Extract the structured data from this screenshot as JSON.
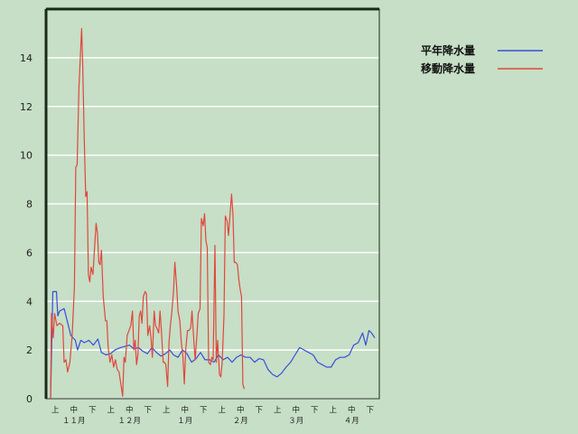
{
  "chart_data": {
    "type": "line",
    "ylim": [
      0,
      16
    ],
    "yticks": [
      0,
      2,
      4,
      6,
      8,
      10,
      12,
      14
    ],
    "grid": true,
    "legend_position": "top-right",
    "xticks_row1": [
      "上",
      "中",
      "下",
      "上",
      "中",
      "下",
      "上",
      "中",
      "下",
      "上",
      "中",
      "下",
      "上",
      "中",
      "下",
      "上",
      "中",
      "下"
    ],
    "xticks_row2": [
      "１１月",
      "１２月",
      "１月",
      "２月",
      "３月",
      "４月"
    ],
    "colors": {
      "normal": "#3a4ed8",
      "moving": "#e0473c",
      "background": "#c6dfc6"
    },
    "series": [
      {
        "name": "平年降水量",
        "color": "#3a4ed8",
        "points": [
          [
            0,
            0
          ],
          [
            0.5,
            4.4
          ],
          [
            1.3,
            4.4
          ],
          [
            1.6,
            3.4
          ],
          [
            2,
            3.6
          ],
          [
            3,
            3.7
          ],
          [
            3.7,
            3.2
          ],
          [
            4.5,
            2.6
          ],
          [
            5.5,
            2.4
          ],
          [
            6,
            2.0
          ],
          [
            6.7,
            2.4
          ],
          [
            7.5,
            2.3
          ],
          [
            8.5,
            2.4
          ],
          [
            9.5,
            2.2
          ],
          [
            10.5,
            2.45
          ],
          [
            11.3,
            1.9
          ],
          [
            12.3,
            1.8
          ],
          [
            13.3,
            1.85
          ],
          [
            14.3,
            2.0
          ],
          [
            15.5,
            2.1
          ],
          [
            17.5,
            2.2
          ],
          [
            18.5,
            2.05
          ],
          [
            19.5,
            2.1
          ],
          [
            20.5,
            1.95
          ],
          [
            21.5,
            1.85
          ],
          [
            22.5,
            2.1
          ],
          [
            23.5,
            1.9
          ],
          [
            24.5,
            1.75
          ],
          [
            25.5,
            1.85
          ],
          [
            26.5,
            2.0
          ],
          [
            27.3,
            1.8
          ],
          [
            28.3,
            1.7
          ],
          [
            29.3,
            2.0
          ],
          [
            30.3,
            1.85
          ],
          [
            31.3,
            1.5
          ],
          [
            32.3,
            1.65
          ],
          [
            33.3,
            1.9
          ],
          [
            34.3,
            1.6
          ],
          [
            35.3,
            1.6
          ],
          [
            36.3,
            1.5
          ],
          [
            37.3,
            1.8
          ],
          [
            38.3,
            1.6
          ],
          [
            39.3,
            1.7
          ],
          [
            40.3,
            1.5
          ],
          [
            41.3,
            1.7
          ],
          [
            42.3,
            1.8
          ],
          [
            43.3,
            1.7
          ],
          [
            44.3,
            1.7
          ],
          [
            45.3,
            1.5
          ],
          [
            46.3,
            1.65
          ],
          [
            47.3,
            1.6
          ],
          [
            48.3,
            1.2
          ],
          [
            49.3,
            1.0
          ],
          [
            50.3,
            0.9
          ],
          [
            51.3,
            1.05
          ],
          [
            52.3,
            1.3
          ],
          [
            53.3,
            1.5
          ],
          [
            54.3,
            1.8
          ],
          [
            55.3,
            2.1
          ],
          [
            56.3,
            2.0
          ],
          [
            57.3,
            1.9
          ],
          [
            58.3,
            1.8
          ],
          [
            59.3,
            1.5
          ],
          [
            60.3,
            1.4
          ],
          [
            61.3,
            1.3
          ],
          [
            62.3,
            1.3
          ],
          [
            63.3,
            1.6
          ],
          [
            64.3,
            1.7
          ],
          [
            65.3,
            1.7
          ],
          [
            66.3,
            1.8
          ],
          [
            67.3,
            2.2
          ],
          [
            68.3,
            2.3
          ],
          [
            69.3,
            2.7
          ],
          [
            70,
            2.2
          ],
          [
            70.7,
            2.8
          ],
          [
            71.3,
            2.7
          ],
          [
            72,
            2.5
          ]
        ]
      },
      {
        "name": "移動降水量",
        "color": "#e0473c",
        "points": [
          [
            0,
            0
          ],
          [
            0.2,
            3.5
          ],
          [
            0.6,
            2.5
          ],
          [
            0.9,
            3.5
          ],
          [
            1.4,
            3.0
          ],
          [
            2,
            3.1
          ],
          [
            2.7,
            3.0
          ],
          [
            3,
            1.5
          ],
          [
            3.4,
            1.6
          ],
          [
            3.8,
            1.1
          ],
          [
            4.3,
            1.5
          ],
          [
            4.8,
            2.6
          ],
          [
            5.3,
            4.6
          ],
          [
            5.6,
            9.5
          ],
          [
            5.9,
            9.6
          ],
          [
            6.3,
            12.8
          ],
          [
            6.9,
            15.2
          ],
          [
            7.1,
            14.0
          ],
          [
            7.5,
            10.5
          ],
          [
            7.8,
            8.3
          ],
          [
            8.1,
            8.5
          ],
          [
            8.4,
            5.1
          ],
          [
            8.7,
            4.8
          ],
          [
            9,
            5.4
          ],
          [
            9.4,
            5.1
          ],
          [
            9.8,
            6.3
          ],
          [
            10.1,
            7.2
          ],
          [
            10.4,
            6.8
          ],
          [
            10.7,
            5.6
          ],
          [
            11,
            5.5
          ],
          [
            11.3,
            6.1
          ],
          [
            11.7,
            4.2
          ],
          [
            12.2,
            3.2
          ],
          [
            12.5,
            3.2
          ],
          [
            12.8,
            2.1
          ],
          [
            13.2,
            1.5
          ],
          [
            13.6,
            1.8
          ],
          [
            14,
            1.3
          ],
          [
            14.4,
            1.6
          ],
          [
            14.8,
            1.2
          ],
          [
            15.2,
            1.1
          ],
          [
            15.6,
            0.6
          ],
          [
            16,
            0.1
          ],
          [
            16.3,
            1.7
          ],
          [
            16.6,
            1.5
          ],
          [
            17,
            2.6
          ],
          [
            17.4,
            2.8
          ],
          [
            17.8,
            3.0
          ],
          [
            18.2,
            3.6
          ],
          [
            18.5,
            2.0
          ],
          [
            18.8,
            2.4
          ],
          [
            19.1,
            1.4
          ],
          [
            19.4,
            1.8
          ],
          [
            19.7,
            3.4
          ],
          [
            20,
            3.6
          ],
          [
            20.3,
            3.1
          ],
          [
            20.6,
            4.2
          ],
          [
            21,
            4.4
          ],
          [
            21.3,
            4.3
          ],
          [
            21.6,
            2.6
          ],
          [
            22,
            3.0
          ],
          [
            22.3,
            2.5
          ],
          [
            22.6,
            1.7
          ],
          [
            23,
            3.6
          ],
          [
            23.3,
            3.0
          ],
          [
            23.6,
            2.9
          ],
          [
            24,
            2.7
          ],
          [
            24.3,
            3.6
          ],
          [
            24.6,
            2.8
          ],
          [
            25,
            1.5
          ],
          [
            25.3,
            1.5
          ],
          [
            25.6,
            1.4
          ],
          [
            26,
            0.5
          ],
          [
            26.3,
            2.3
          ],
          [
            26.6,
            3.0
          ],
          [
            26.9,
            3.5
          ],
          [
            27.3,
            4.4
          ],
          [
            27.6,
            5.6
          ],
          [
            28,
            4.6
          ],
          [
            28.3,
            3.6
          ],
          [
            28.7,
            3.2
          ],
          [
            29,
            2.4
          ],
          [
            29.4,
            1.7
          ],
          [
            29.7,
            0.6
          ],
          [
            30,
            2.0
          ],
          [
            30.4,
            2.8
          ],
          [
            30.7,
            2.8
          ],
          [
            31.1,
            2.9
          ],
          [
            31.4,
            3.6
          ],
          [
            31.8,
            2.4
          ],
          [
            32.1,
            1.6
          ],
          [
            32.5,
            2.6
          ],
          [
            32.8,
            3.5
          ],
          [
            33.2,
            3.7
          ],
          [
            33.5,
            7.4
          ],
          [
            33.9,
            7.1
          ],
          [
            34.2,
            7.6
          ],
          [
            34.5,
            6.5
          ],
          [
            34.8,
            6.2
          ],
          [
            35.1,
            1.5
          ],
          [
            35.5,
            1.4
          ],
          [
            35.8,
            1.7
          ],
          [
            36.1,
            1.6
          ],
          [
            36.5,
            6.3
          ],
          [
            36.8,
            1.5
          ],
          [
            37.1,
            2.4
          ],
          [
            37.5,
            1.0
          ],
          [
            37.8,
            0.9
          ],
          [
            38.1,
            1.5
          ],
          [
            38.5,
            3.4
          ],
          [
            38.8,
            7.5
          ],
          [
            39.2,
            7.3
          ],
          [
            39.5,
            6.7
          ],
          [
            39.8,
            7.4
          ],
          [
            40.2,
            8.4
          ],
          [
            40.5,
            7.6
          ],
          [
            40.8,
            5.6
          ],
          [
            41.1,
            5.6
          ],
          [
            41.5,
            5.5
          ],
          [
            41.8,
            4.9
          ],
          [
            42.1,
            4.5
          ],
          [
            42.4,
            4.2
          ],
          [
            42.7,
            0.6
          ],
          [
            43,
            0.4
          ]
        ]
      }
    ]
  }
}
